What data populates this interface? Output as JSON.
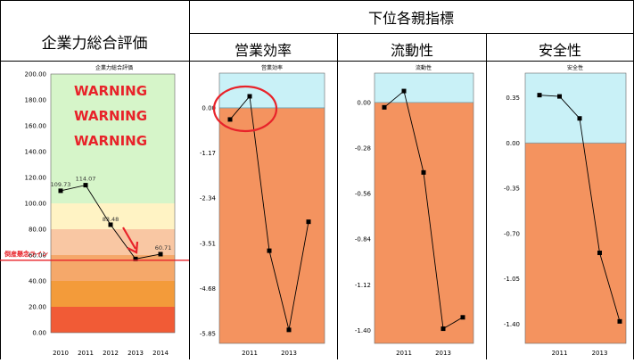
{
  "header": {
    "overall_title": "企業力総合評価",
    "sub_title": "下位各親指標",
    "panel_titles": [
      "営業効率",
      "流動性",
      "安全性"
    ]
  },
  "colors": {
    "green_zone": "#d6f5c9",
    "yellow_zone": "#fff3c4",
    "peach_zone": "#f9c7a3",
    "orange_zone": "#f5a86a",
    "deep_orange_zone": "#f39b3a",
    "red_zone": "#f15b36",
    "cyan_zone": "#c9f1f7",
    "main_orange": "#f4935f",
    "warning_red": "#e8232a",
    "line": "#000000"
  },
  "chart_data": [
    {
      "type": "line",
      "title": "企業力総合評価",
      "categories": [
        "2010",
        "2011",
        "2012",
        "2013",
        "2014"
      ],
      "series": [
        {
          "values": [
            109.73,
            114.07,
            83.48,
            57.0,
            60.71
          ]
        }
      ],
      "data_labels": [
        "109.73",
        "114.07",
        "83.48",
        "",
        "60.71"
      ],
      "y_ticks": [
        "200.00",
        "180.00",
        "160.00",
        "140.00",
        "120.00",
        "100.00",
        "80.00",
        "60.00",
        "40.00",
        "20.00",
        "0.00"
      ],
      "ylim": [
        0,
        200
      ],
      "bands": [
        {
          "from": 100,
          "to": 200,
          "color": "green_zone"
        },
        {
          "from": 80,
          "to": 100,
          "color": "yellow_zone"
        },
        {
          "from": 60,
          "to": 80,
          "color": "peach_zone"
        },
        {
          "from": 40,
          "to": 60,
          "color": "orange_zone"
        },
        {
          "from": 20,
          "to": 40,
          "color": "deep_orange_zone"
        },
        {
          "from": 0,
          "to": 20,
          "color": "red_zone"
        }
      ],
      "warnings": [
        "WARNING",
        "WARNING",
        "WARNING"
      ],
      "annotation": {
        "text": "倒産懸念ライン",
        "value": 56
      }
    },
    {
      "type": "line",
      "title": "営業効率",
      "x_labels": [
        "2011",
        "2013"
      ],
      "series": [
        {
          "values": [
            -0.3,
            0.3,
            -3.7,
            -5.75,
            -2.95
          ]
        }
      ],
      "y_ticks": [
        "0.00",
        "-1.17",
        "-2.34",
        "-3.51",
        "-4.68",
        "-5.85"
      ],
      "ylim": [
        -6.1,
        0.9
      ],
      "threshold": 0
    },
    {
      "type": "line",
      "title": "流動性",
      "x_labels": [
        "2011",
        "2013"
      ],
      "series": [
        {
          "values": [
            -0.03,
            0.07,
            -0.43,
            -1.39,
            -1.32
          ]
        }
      ],
      "y_ticks": [
        "0.00",
        "-0.28",
        "-0.56",
        "-0.84",
        "-1.12",
        "-1.40"
      ],
      "ylim": [
        -1.48,
        0.18
      ],
      "threshold": 0
    },
    {
      "type": "line",
      "title": "安全性",
      "x_labels": [
        "2011",
        "2013"
      ],
      "series": [
        {
          "values": [
            0.37,
            0.36,
            0.19,
            -0.85,
            -1.38
          ]
        }
      ],
      "y_ticks": [
        "0.35",
        "0.00",
        "-0.35",
        "-0.70",
        "-1.05",
        "-1.40"
      ],
      "ylim": [
        -1.55,
        0.54
      ],
      "threshold": 0
    }
  ]
}
